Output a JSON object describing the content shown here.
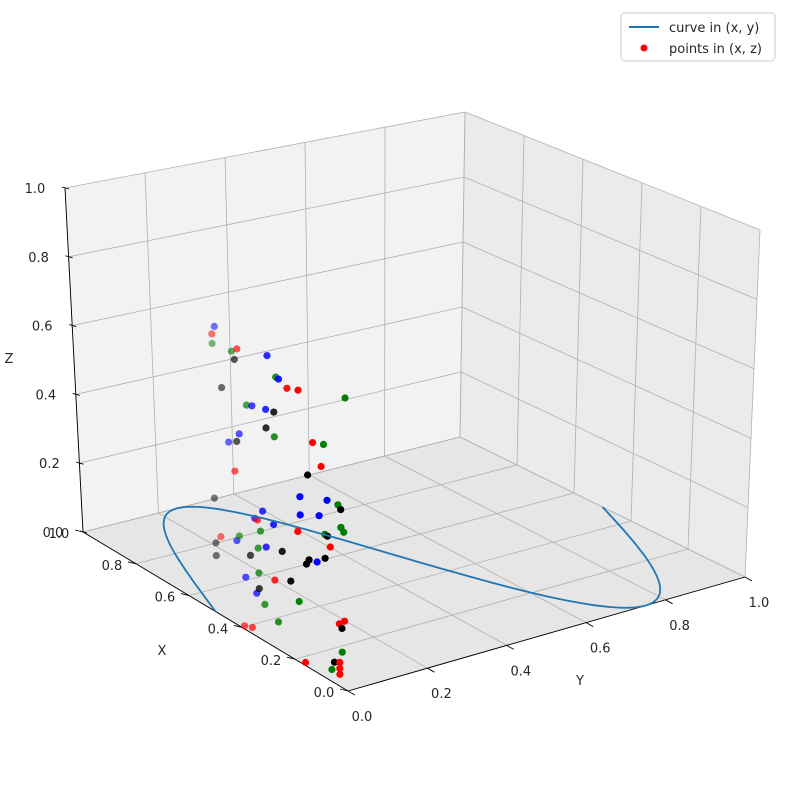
{
  "chart_data": {
    "type": "scatter",
    "projection": "3d",
    "xlabel": "X",
    "ylabel": "Y",
    "zlabel": "Z",
    "xlim": [
      0,
      1
    ],
    "ylim": [
      0,
      1
    ],
    "zlim": [
      0,
      1
    ],
    "x_ticks": [
      "0.0",
      "0.2",
      "0.4",
      "0.6",
      "0.8",
      "1.0"
    ],
    "y_ticks": [
      "0.0",
      "0.2",
      "0.4",
      "0.6",
      "0.8",
      "1.0"
    ],
    "z_ticks": [
      "0.0",
      "0.2",
      "0.4",
      "0.6",
      "0.8",
      "1.0"
    ],
    "grid": true,
    "legend": {
      "placement": "top-right",
      "entries": [
        {
          "label": "curve in (x, y)",
          "kind": "line",
          "color": "#1f77b4"
        },
        {
          "label": "points in (x, z)",
          "kind": "marker",
          "color": "#ff0000"
        }
      ]
    },
    "series": [
      {
        "name": "curve in (x, y)",
        "kind": "line",
        "color": "#1f77b4",
        "formula": "x = (sin(2*pi*t) + 1) / 2, y = t, z = 0, t in [0, 1]",
        "samples": 100
      },
      {
        "name": "points in (x, z)",
        "kind": "scatter",
        "zdir": "y",
        "zs": 0,
        "colors_cycle": [
          "#ff0000",
          "#008000",
          "#0000ff",
          "#000000"
        ],
        "x": [
          0.18,
          0.06,
          0.24,
          0.29,
          0.33,
          0.41,
          0.02,
          0.24,
          0.17,
          0.02,
          0.3,
          0.33,
          0.47,
          0.26,
          0.39,
          0.45,
          0.03,
          0.31,
          0.34,
          0.21,
          0.03,
          0.25,
          0.11,
          0.14,
          0.06,
          0.33,
          0.43,
          0.36,
          0.03,
          0.18,
          0.07,
          0.07,
          0.01,
          0.08,
          0.31,
          0.08,
          0.12,
          0.03,
          0.27,
          0.49,
          0.27,
          0.08,
          0.38,
          0.14,
          0.48,
          0.48,
          0.28,
          0.15,
          0.41,
          0.4,
          0.47,
          0.05,
          0.39,
          0.02,
          0.34,
          0.49,
          0.39,
          0.32,
          0.41,
          0.49,
          0.09,
          0.33,
          0.17,
          0.4,
          0.03,
          0.01,
          0.1,
          0.26,
          0.16,
          0.26,
          0.17,
          0.02,
          0.36,
          0.36,
          0.29,
          0.02,
          0.21,
          0.0,
          0.34,
          0.4
        ],
        "z": [
          0.43,
          0.04,
          0.89,
          0.7,
          0.38,
          0.87,
          0.54,
          0.33,
          0.9,
          0.54,
          0.31,
          0.16,
          0.25,
          0.09,
          0.62,
          0.73,
          0.04,
          0.12,
          0.74,
          0.25,
          0.21,
          0.89,
          0.37,
          0.64,
          0.45,
          0.29,
          0.57,
          0.25,
          0.06,
          0.2,
          0.6,
          0.48,
          0.23,
          0.78,
          0.42,
          0.4,
          0.76,
          0.61,
          0.4,
          0.22,
          0.22,
          0.48,
          0.17,
          0.36,
          0.88,
          0.85,
          0.94,
          0.34,
          0.49,
          0.29,
          0.91,
          0.07,
          0.01,
          0.12,
          0.14,
          0.18,
          0.89,
          0.35,
          0.27,
          0.36,
          0.7,
          0.21,
          0.55,
          0.85,
          0.08,
          0.53,
          0.53,
          0.77,
          0.01,
          0.69,
          0.49,
          0.2,
          0.02,
          0.73,
          0.76,
          0.6,
          0.88,
          0.99,
          0.38,
          0.59
        ]
      }
    ]
  }
}
